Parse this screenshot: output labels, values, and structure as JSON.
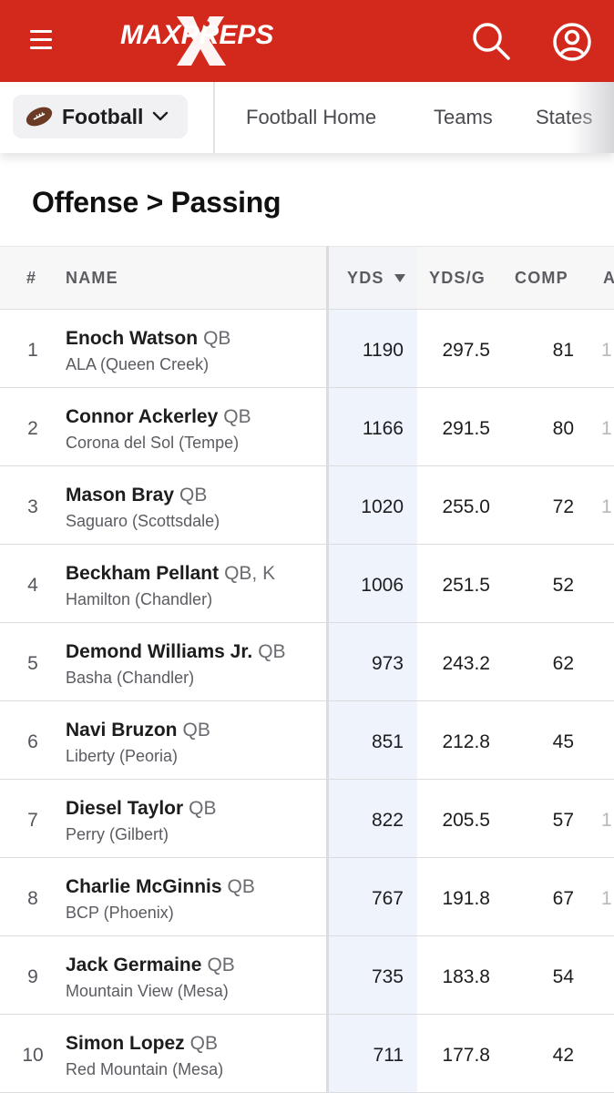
{
  "header": {
    "brand": "MAXPREPS",
    "colors": {
      "brand_red": "#d3291c",
      "yds_highlight": "#eef3fc"
    },
    "icons": {
      "menu": "hamburger-menu-icon",
      "search": "search-icon",
      "account": "user-account-icon"
    }
  },
  "subnav": {
    "sport_label": "Football",
    "sport_icon": "football-icon",
    "links": [
      "Football Home",
      "Teams",
      "States"
    ]
  },
  "page": {
    "title": "Offense > Passing"
  },
  "table": {
    "headers": {
      "rank": "#",
      "name": "NAME",
      "yds": "YDS",
      "ydsg": "YDS/G",
      "comp": "COMP",
      "att": "A"
    },
    "sort_icon": "sort-descending-icon",
    "rows": [
      {
        "rank": "1",
        "name": "Enoch Watson",
        "pos": "QB",
        "school": "ALA (Queen Creek)",
        "yds": "1190",
        "ydsg": "297.5",
        "comp": "81",
        "att": "1"
      },
      {
        "rank": "2",
        "name": "Connor Ackerley",
        "pos": "QB",
        "school": "Corona del Sol (Tempe)",
        "yds": "1166",
        "ydsg": "291.5",
        "comp": "80",
        "att": "1"
      },
      {
        "rank": "3",
        "name": "Mason Bray",
        "pos": "QB",
        "school": "Saguaro (Scottsdale)",
        "yds": "1020",
        "ydsg": "255.0",
        "comp": "72",
        "att": "1"
      },
      {
        "rank": "4",
        "name": "Beckham Pellant",
        "pos": "QB, K",
        "school": "Hamilton (Chandler)",
        "yds": "1006",
        "ydsg": "251.5",
        "comp": "52",
        "att": ""
      },
      {
        "rank": "5",
        "name": "Demond Williams Jr.",
        "pos": "QB",
        "school": "Basha (Chandler)",
        "yds": "973",
        "ydsg": "243.2",
        "comp": "62",
        "att": ""
      },
      {
        "rank": "6",
        "name": "Navi Bruzon",
        "pos": "QB",
        "school": "Liberty (Peoria)",
        "yds": "851",
        "ydsg": "212.8",
        "comp": "45",
        "att": ""
      },
      {
        "rank": "7",
        "name": "Diesel Taylor",
        "pos": "QB",
        "school": "Perry (Gilbert)",
        "yds": "822",
        "ydsg": "205.5",
        "comp": "57",
        "att": "1"
      },
      {
        "rank": "8",
        "name": "Charlie McGinnis",
        "pos": "QB",
        "school": "BCP (Phoenix)",
        "yds": "767",
        "ydsg": "191.8",
        "comp": "67",
        "att": "1"
      },
      {
        "rank": "9",
        "name": "Jack Germaine",
        "pos": "QB",
        "school": "Mountain View (Mesa)",
        "yds": "735",
        "ydsg": "183.8",
        "comp": "54",
        "att": ""
      },
      {
        "rank": "10",
        "name": "Simon Lopez",
        "pos": "QB",
        "school": "Red Mountain (Mesa)",
        "yds": "711",
        "ydsg": "177.8",
        "comp": "42",
        "att": ""
      }
    ]
  }
}
